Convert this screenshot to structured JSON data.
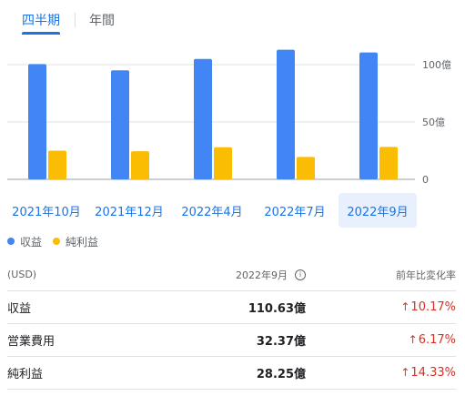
{
  "tabs": [
    {
      "label": "四半期",
      "active": true
    },
    {
      "label": "年間",
      "active": false
    }
  ],
  "chart_data": {
    "type": "bar",
    "categories": [
      "2021年10月",
      "2021年12月",
      "2022年4月",
      "2022年7月",
      "2022年9月"
    ],
    "selected_index": 4,
    "series": [
      {
        "name": "収益",
        "color": "#4285f4",
        "values": [
          100.5,
          95,
          105,
          113,
          110.63
        ]
      },
      {
        "name": "純利益",
        "color": "#fbbc04",
        "values": [
          25,
          24.5,
          28,
          19.5,
          28.25
        ]
      }
    ],
    "y_ticks": [
      {
        "value": 0,
        "label": "0"
      },
      {
        "value": 50,
        "label": "50億"
      },
      {
        "value": 100,
        "label": "100億"
      }
    ],
    "ylim": [
      0,
      118
    ],
    "grid": true
  },
  "legend": [
    {
      "label": "収益",
      "color": "#4285f4"
    },
    {
      "label": "純利益",
      "color": "#fbbc04"
    }
  ],
  "table": {
    "header": {
      "unit": "(USD)",
      "period": "2022年9月",
      "info_icon": "info-icon",
      "change": "前年比変化率"
    },
    "rows": [
      {
        "label": "収益",
        "value": "110.63億",
        "change": "10.17%"
      },
      {
        "label": "営業費用",
        "value": "32.37億",
        "change": "6.17%"
      },
      {
        "label": "純利益",
        "value": "28.25億",
        "change": "14.33%"
      }
    ],
    "up_arrow_icon": "arrow-up-icon",
    "change_color": "#d93025"
  }
}
